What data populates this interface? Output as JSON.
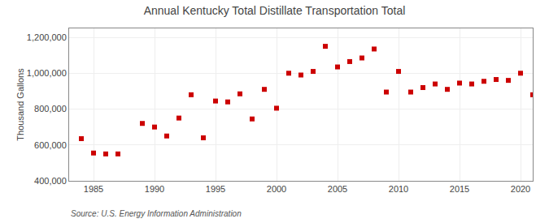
{
  "chart_data": {
    "type": "scatter",
    "title": "Annual Kentucky Total Distillate Transportation Total",
    "ylabel": "Thousand Gallons",
    "source": "Source: U.S. Energy Information Administration",
    "x": [
      1984,
      1985,
      1986,
      1987,
      1989,
      1990,
      1991,
      1992,
      1993,
      1994,
      1995,
      1996,
      1997,
      1998,
      1999,
      2000,
      2001,
      2002,
      2003,
      2004,
      2005,
      2006,
      2007,
      2008,
      2009,
      2010,
      2011,
      2012,
      2013,
      2014,
      2015,
      2016,
      2017,
      2018,
      2019,
      2020,
      2021
    ],
    "values": [
      635000,
      555000,
      550000,
      550000,
      720000,
      700000,
      650000,
      750000,
      880000,
      640000,
      845000,
      840000,
      885000,
      745000,
      910000,
      805000,
      1000000,
      990000,
      1010000,
      1150000,
      1035000,
      1065000,
      1085000,
      1135000,
      895000,
      1010000,
      895000,
      920000,
      940000,
      910000,
      945000,
      940000,
      955000,
      965000,
      960000,
      1000000,
      880000
    ],
    "color": "#cc0000",
    "marker": "square",
    "xlim": [
      1983,
      2021
    ],
    "ylim": [
      400000,
      1250000
    ],
    "xticks": [
      1985,
      1990,
      1995,
      2000,
      2005,
      2010,
      2015,
      2020
    ],
    "yticks": [
      {
        "value": 400000,
        "label": "400,000"
      },
      {
        "value": 600000,
        "label": "600,000"
      },
      {
        "value": 800000,
        "label": "800,000"
      },
      {
        "value": 1000000,
        "label": "1,000,000"
      },
      {
        "value": 1200000,
        "label": "1,200,000"
      }
    ],
    "grid": true
  }
}
